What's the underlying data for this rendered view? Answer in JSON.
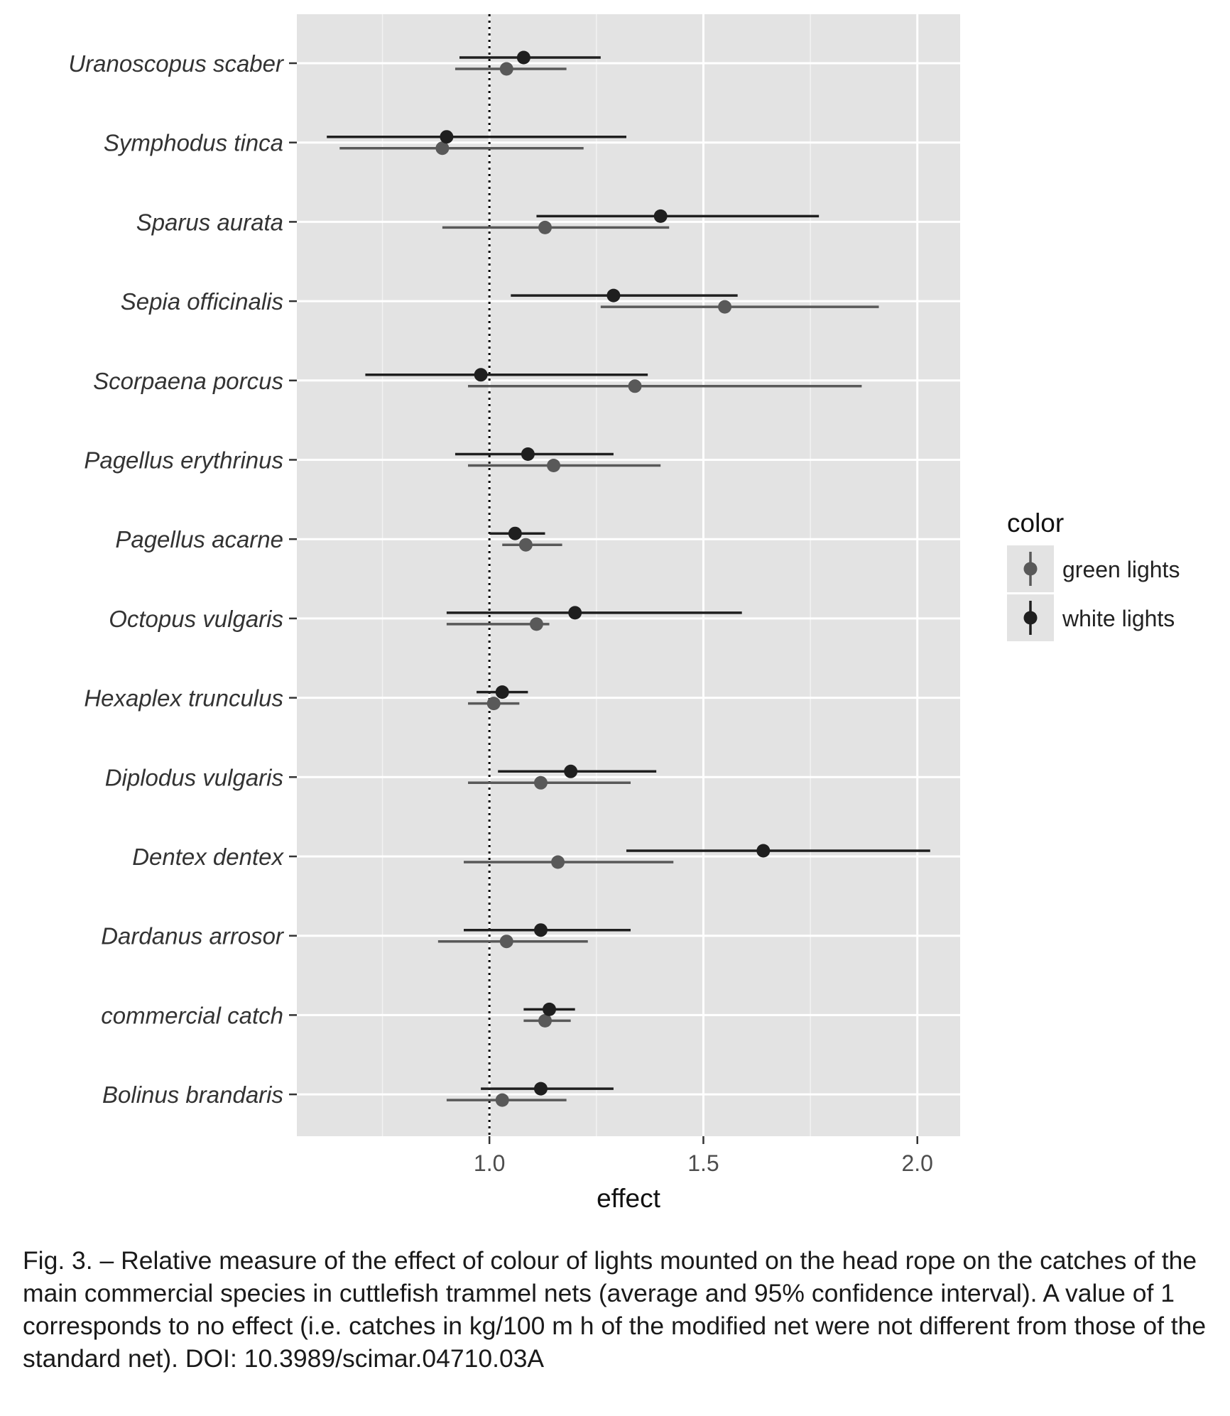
{
  "chart_data": {
    "type": "scatter",
    "subtype": "point-range (mean with 95% CI)",
    "xlabel": "effect",
    "ylabel": "",
    "xlim": [
      0.55,
      2.1
    ],
    "x_ticks": [
      1.0,
      1.5,
      2.0
    ],
    "x_tick_labels": [
      "1.0",
      "1.5",
      "2.0"
    ],
    "reference_line": 1.0,
    "grid": true,
    "legend": {
      "title": "color",
      "position": "right",
      "entries": [
        {
          "name": "green lights",
          "color": "#595959"
        },
        {
          "name": "white lights",
          "color": "#1f1f1f"
        }
      ]
    },
    "categories": [
      "Uranoscopus scaber",
      "Symphodus tinca",
      "Sparus aurata",
      "Sepia officinalis",
      "Scorpaena porcus",
      "Pagellus erythrinus",
      "Pagellus acarne",
      "Octopus vulgaris",
      "Hexaplex trunculus",
      "Diplodus vulgaris",
      "Dentex dentex",
      "Dardanus arrosor",
      "commercial catch",
      "Bolinus brandaris"
    ],
    "series": [
      {
        "name": "white lights",
        "color": "#1f1f1f",
        "mean": [
          1.08,
          0.9,
          1.4,
          1.29,
          0.98,
          1.09,
          1.06,
          1.2,
          1.03,
          1.19,
          1.64,
          1.12,
          1.14,
          1.12
        ],
        "lower": [
          0.93,
          0.62,
          1.11,
          1.05,
          0.71,
          0.92,
          1.0,
          0.9,
          0.97,
          1.02,
          1.32,
          0.94,
          1.08,
          0.98
        ],
        "upper": [
          1.26,
          1.32,
          1.77,
          1.58,
          1.37,
          1.29,
          1.13,
          1.59,
          1.09,
          1.39,
          2.03,
          1.33,
          1.2,
          1.29
        ]
      },
      {
        "name": "green lights",
        "color": "#595959",
        "mean": [
          1.04,
          0.89,
          1.13,
          1.55,
          1.34,
          1.15,
          1.085,
          1.11,
          1.01,
          1.12,
          1.16,
          1.04,
          1.13,
          1.03
        ],
        "lower": [
          0.92,
          0.65,
          0.89,
          1.26,
          0.95,
          0.95,
          1.03,
          0.9,
          0.95,
          0.95,
          0.94,
          0.88,
          1.08,
          0.9
        ],
        "upper": [
          1.18,
          1.22,
          1.42,
          1.91,
          1.87,
          1.4,
          1.17,
          1.14,
          1.07,
          1.33,
          1.43,
          1.23,
          1.19,
          1.18
        ]
      }
    ]
  },
  "caption": "Fig. 3. – Relative measure of the effect of colour of lights mounted on the head rope on the catches of the main commercial species in cuttlefish trammel nets (average and 95% confidence interval). A value of 1 corresponds to no effect (i.e. catches in kg/100 m h of the modified net were not different from those of the standard net). DOI: 10.3989/scimar.04710.03A"
}
